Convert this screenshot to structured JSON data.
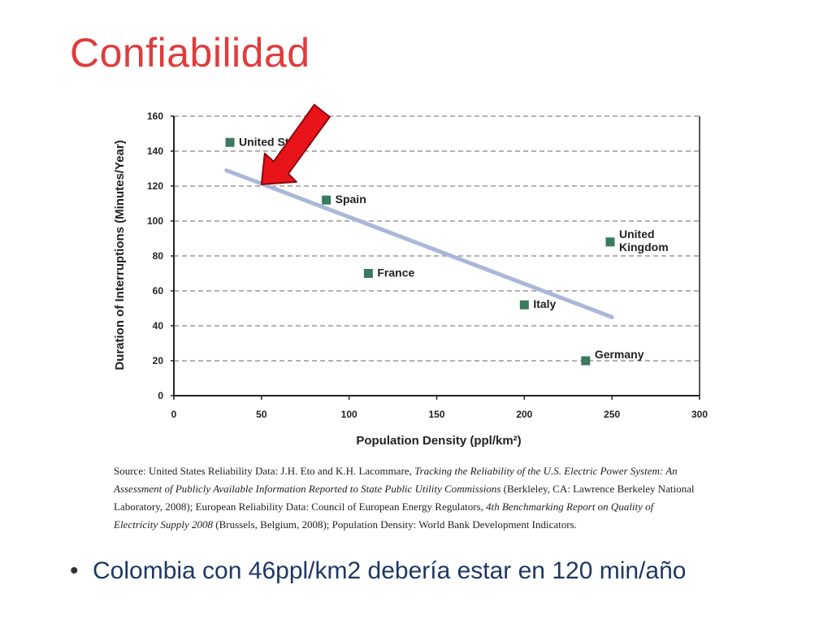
{
  "slide": {
    "title": "Confiabilidad",
    "bullet": "Colombia con 46ppl/km2 debería estar en 120 min/año"
  },
  "source": {
    "part1": "Source: United States Reliability Data: J.H. Eto and K.H. Lacommare, ",
    "part2": "Tracking the Reliability of the U.S. Electric Power System: An Assessment of Publicly Available Information Reported to State Public Utility Commissions",
    "part3": " (Berkleley, CA: Lawrence Berkeley National Laboratory, 2008); European Reliability Data: Council of European Energy Regulators, ",
    "part4": "4th Benchmarking Report on Quality of Electricity Supply 2008",
    "part5": " (Brussels, Belgium, 2008); Population Density: World Bank Development Indicators."
  },
  "chart_data": {
    "type": "scatter",
    "xlabel": "Population Density (ppl/km²)",
    "ylabel": "Duration of Interruptions (Minutes/Year)",
    "xlim": [
      0,
      300
    ],
    "ylim": [
      0,
      160
    ],
    "xticks": [
      0,
      50,
      100,
      150,
      200,
      250,
      300
    ],
    "yticks": [
      0,
      20,
      40,
      60,
      80,
      100,
      120,
      140,
      160
    ],
    "grid": "horizontal-dashed",
    "points": [
      {
        "label": "United States",
        "x": 32,
        "y": 145
      },
      {
        "label": "Spain",
        "x": 87,
        "y": 112
      },
      {
        "label": "France",
        "x": 111,
        "y": 70
      },
      {
        "label": "Italy",
        "x": 200,
        "y": 52
      },
      {
        "label": "United Kingdom",
        "x": 249,
        "y": 88
      },
      {
        "label": "Germany",
        "x": 235,
        "y": 20
      }
    ],
    "trendline": {
      "x": [
        30,
        250
      ],
      "y": [
        129,
        45
      ]
    },
    "annotation_arrow": {
      "x": 50,
      "y": 121
    },
    "colors": {
      "marker": "#3a7a5e",
      "trend": "#aab7db",
      "arrow": "#e8141a",
      "grid": "#999999"
    }
  }
}
